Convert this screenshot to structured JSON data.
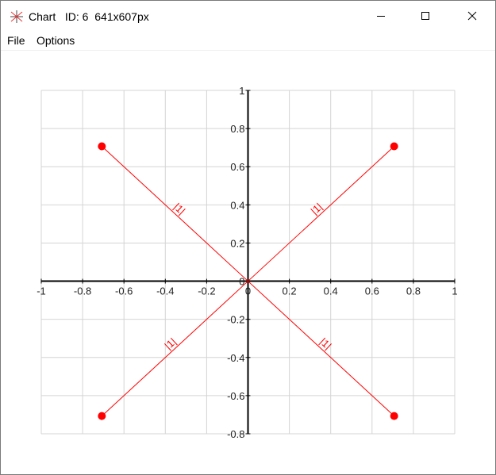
{
  "window": {
    "title": "Chart   ID: 6  641x607px",
    "icon": "chart-app-icon",
    "controls": [
      "minimize-icon",
      "maximize-icon",
      "close-icon"
    ]
  },
  "menu": {
    "items": [
      {
        "label": "File"
      },
      {
        "label": "Options"
      }
    ]
  },
  "chart_data": {
    "type": "line",
    "title": "",
    "xlabel": "",
    "ylabel": "",
    "xlim": [
      -1,
      1
    ],
    "ylim": [
      -0.8,
      1
    ],
    "x_ticks": [
      "-1",
      "-0.8",
      "-0.6",
      "-0.4",
      "-0.2",
      "0",
      "0.2",
      "0.4",
      "0.6",
      "0.8",
      "1"
    ],
    "y_ticks": [
      "1",
      "0.8",
      "0.6",
      "0.4",
      "0.2",
      "0",
      "-0.2",
      "-0.4",
      "-0.6",
      "-0.8"
    ],
    "x_tick_values": [
      -1,
      -0.8,
      -0.6,
      -0.4,
      -0.2,
      0,
      0.2,
      0.4,
      0.6,
      0.8,
      1
    ],
    "y_tick_values": [
      1,
      0.8,
      0.6,
      0.4,
      0.2,
      0,
      -0.2,
      -0.4,
      -0.6,
      -0.8
    ],
    "grid": true,
    "color": "#ff0000",
    "series": [
      {
        "x": [
          0,
          0.707
        ],
        "y": [
          0,
          0.707
        ],
        "label": "|1|"
      },
      {
        "x": [
          0,
          -0.707
        ],
        "y": [
          0,
          0.707
        ],
        "label": "|1|"
      },
      {
        "x": [
          0,
          -0.707
        ],
        "y": [
          0,
          -0.707
        ],
        "label": "|1|"
      },
      {
        "x": [
          0,
          0.707
        ],
        "y": [
          0,
          -0.707
        ],
        "label": "|1|"
      }
    ]
  }
}
